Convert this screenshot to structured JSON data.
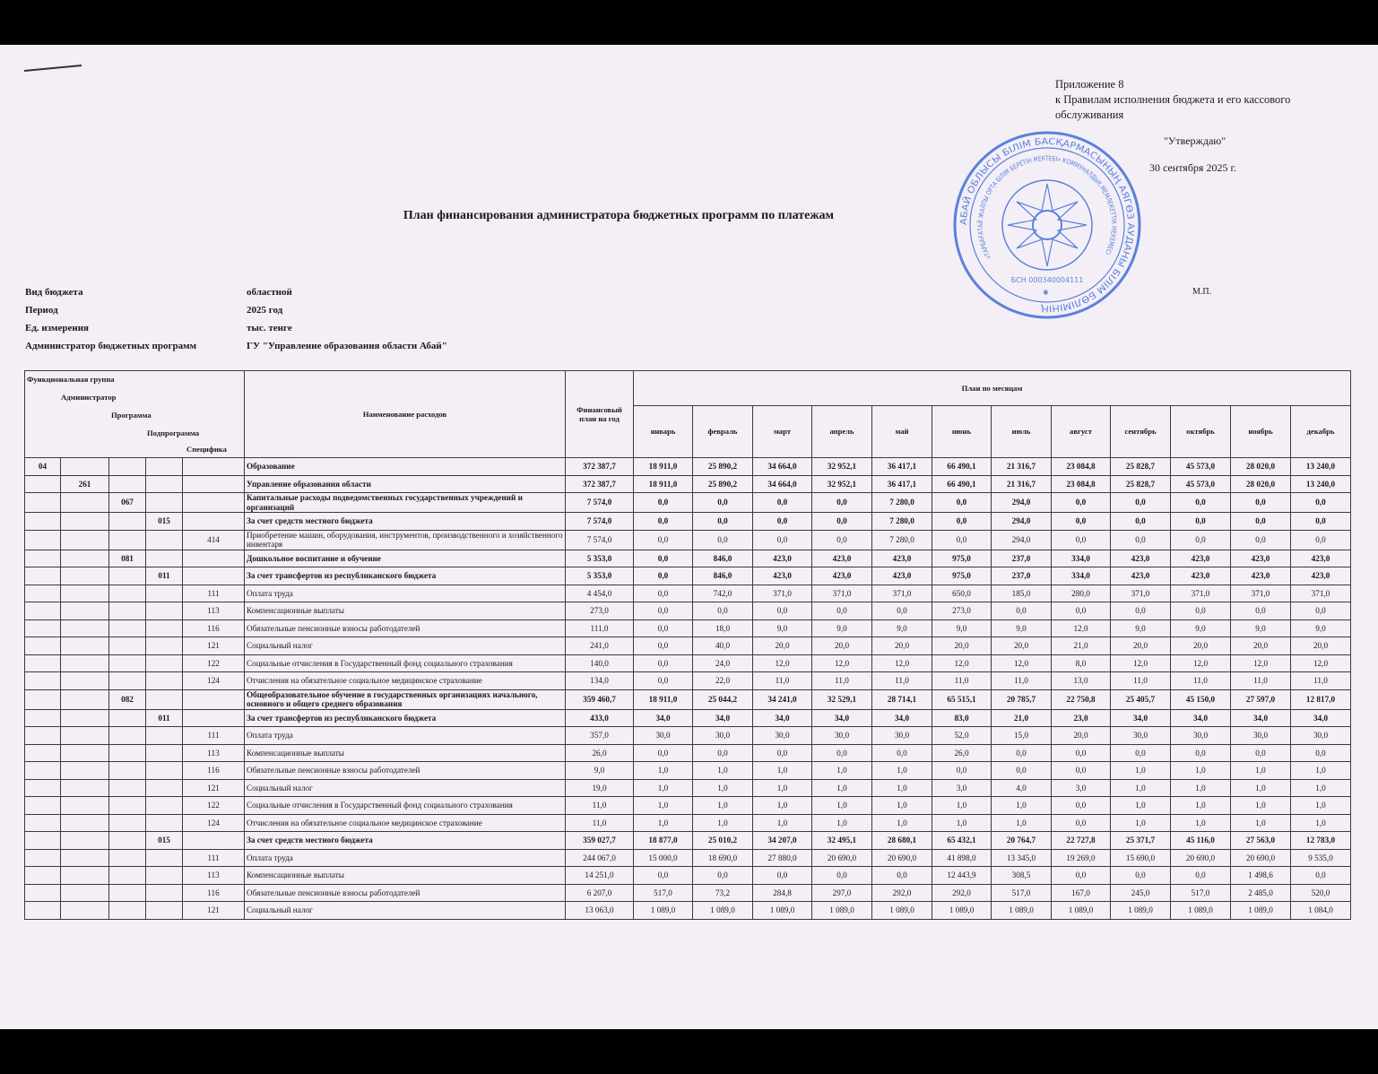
{
  "appendix": {
    "line1": "Приложение 8",
    "line2": "к Правилам исполнения бюджета и его кассового обслуживания",
    "approve": "\"Утверждаю\"",
    "date": "30  сентября 2025 г.",
    "seal_place": "М.П."
  },
  "stamp": {
    "color": "#3f6fd8",
    "outer_text": "АБАЙ ОБЛЫСЫ БІЛІМ БАСҚАРМАСЫНЫҢ АЯГӨЗ АУДАНЫ БІЛІМ БӨЛІМІНІҢ",
    "inner_text": "«ТАРБАҒАТАЙ ЖАЛПЫ ОРТА БІЛІМ БЕРЕТІН МЕКТЕБІ» КОММУНАЛДЫҚ МЕМЛЕКЕТТІК МЕКЕМЕСІ",
    "bin": "БСН 000340004111"
  },
  "title": "План финансирования администратора бюджетных программ по платежам",
  "meta": [
    {
      "label": "Вид бюджета",
      "value": "областной"
    },
    {
      "label": "Период",
      "value": "2025 год"
    },
    {
      "label": "Ед. измерения",
      "value": "тыс. тенге"
    },
    {
      "label": "Администратор бюджетных программ",
      "value": "ГУ \"Управление образования области Абай\""
    }
  ],
  "table": {
    "code_headers": [
      "Функциональная группа",
      "Администратор",
      "Программа",
      "Подпрограмма",
      "Специфика"
    ],
    "name_header": "Наименование расходов",
    "annual_header": "Финансовый план на год",
    "months_header": "План по месяцам",
    "months": [
      "январь",
      "февраль",
      "март",
      "апрель",
      "май",
      "июнь",
      "июль",
      "август",
      "сентябрь",
      "октябрь",
      "ноябрь",
      "декабрь"
    ],
    "rows": [
      {
        "codes": [
          "04",
          "",
          "",
          "",
          ""
        ],
        "name": "Образование",
        "annual": "372 387,7",
        "m": [
          "18 911,0",
          "25 890,2",
          "34 664,0",
          "32 952,1",
          "36 417,1",
          "66 490,1",
          "21 316,7",
          "23 084,8",
          "25 828,7",
          "45 573,0",
          "28 020,0",
          "13 240,0"
        ]
      },
      {
        "codes": [
          "",
          "261",
          "",
          "",
          ""
        ],
        "name": "Управление образования области",
        "annual": "372 387,7",
        "m": [
          "18 911,0",
          "25 890,2",
          "34 664,0",
          "32 952,1",
          "36 417,1",
          "66 490,1",
          "21 316,7",
          "23 084,8",
          "25 828,7",
          "45 573,0",
          "28 020,0",
          "13 240,0"
        ]
      },
      {
        "codes": [
          "",
          "",
          "067",
          "",
          ""
        ],
        "name": "Капитальные расходы подведомственных государственных учреждений и организаций",
        "annual": "7 574,0",
        "m": [
          "0,0",
          "0,0",
          "0,0",
          "0,0",
          "7 280,0",
          "0,0",
          "294,0",
          "0,0",
          "0,0",
          "0,0",
          "0,0",
          "0,0"
        ]
      },
      {
        "codes": [
          "",
          "",
          "",
          "015",
          ""
        ],
        "name": "За счет средств местного бюджета",
        "annual": "7 574,0",
        "m": [
          "0,0",
          "0,0",
          "0,0",
          "0,0",
          "7 280,0",
          "0,0",
          "294,0",
          "0,0",
          "0,0",
          "0,0",
          "0,0",
          "0,0"
        ]
      },
      {
        "codes": [
          "",
          "",
          "",
          "",
          "414"
        ],
        "name": "Приобретение машин, оборудования, инструментов, производственного и хозяйственного инвентаря",
        "annual": "7 574,0",
        "m": [
          "0,0",
          "0,0",
          "0,0",
          "0,0",
          "7 280,0",
          "0,0",
          "294,0",
          "0,0",
          "0,0",
          "0,0",
          "0,0",
          "0,0"
        ]
      },
      {
        "codes": [
          "",
          "",
          "081",
          "",
          ""
        ],
        "name": "Дошкольное воспитание и обучение",
        "annual": "5 353,0",
        "m": [
          "0,0",
          "846,0",
          "423,0",
          "423,0",
          "423,0",
          "975,0",
          "237,0",
          "334,0",
          "423,0",
          "423,0",
          "423,0",
          "423,0"
        ]
      },
      {
        "codes": [
          "",
          "",
          "",
          "011",
          ""
        ],
        "name": "За счет трансфертов из республиканского бюджета",
        "annual": "5 353,0",
        "m": [
          "0,0",
          "846,0",
          "423,0",
          "423,0",
          "423,0",
          "975,0",
          "237,0",
          "334,0",
          "423,0",
          "423,0",
          "423,0",
          "423,0"
        ]
      },
      {
        "codes": [
          "",
          "",
          "",
          "",
          "111"
        ],
        "name": "Оплата труда",
        "annual": "4 454,0",
        "m": [
          "0,0",
          "742,0",
          "371,0",
          "371,0",
          "371,0",
          "650,0",
          "185,0",
          "280,0",
          "371,0",
          "371,0",
          "371,0",
          "371,0"
        ]
      },
      {
        "codes": [
          "",
          "",
          "",
          "",
          "113"
        ],
        "name": "Компенсационные выплаты",
        "annual": "273,0",
        "m": [
          "0,0",
          "0,0",
          "0,0",
          "0,0",
          "0,0",
          "273,0",
          "0,0",
          "0,0",
          "0,0",
          "0,0",
          "0,0",
          "0,0"
        ]
      },
      {
        "codes": [
          "",
          "",
          "",
          "",
          "116"
        ],
        "name": "Обязательные пенсионные взносы работодателей",
        "annual": "111,0",
        "m": [
          "0,0",
          "18,0",
          "9,0",
          "9,0",
          "9,0",
          "9,0",
          "9,0",
          "12,0",
          "9,0",
          "9,0",
          "9,0",
          "9,0"
        ]
      },
      {
        "codes": [
          "",
          "",
          "",
          "",
          "121"
        ],
        "name": "Социальный налог",
        "annual": "241,0",
        "m": [
          "0,0",
          "40,0",
          "20,0",
          "20,0",
          "20,0",
          "20,0",
          "20,0",
          "21,0",
          "20,0",
          "20,0",
          "20,0",
          "20,0"
        ]
      },
      {
        "codes": [
          "",
          "",
          "",
          "",
          "122"
        ],
        "name": "Социальные отчисления в Государственный фонд социального страхования",
        "annual": "140,0",
        "m": [
          "0,0",
          "24,0",
          "12,0",
          "12,0",
          "12,0",
          "12,0",
          "12,0",
          "8,0",
          "12,0",
          "12,0",
          "12,0",
          "12,0"
        ]
      },
      {
        "codes": [
          "",
          "",
          "",
          "",
          "124"
        ],
        "name": "Отчисления на обязательное социальное медицинское страхование",
        "annual": "134,0",
        "m": [
          "0,0",
          "22,0",
          "11,0",
          "11,0",
          "11,0",
          "11,0",
          "11,0",
          "13,0",
          "11,0",
          "11,0",
          "11,0",
          "11,0"
        ]
      },
      {
        "codes": [
          "",
          "",
          "082",
          "",
          ""
        ],
        "name": "Общеобразовательное обучение в государственных организациях начального, основного и общего среднего образования",
        "annual": "359 460,7",
        "m": [
          "18 911,0",
          "25 044,2",
          "34 241,0",
          "32 529,1",
          "28 714,1",
          "65 515,1",
          "20 785,7",
          "22 750,8",
          "25 405,7",
          "45 150,0",
          "27 597,0",
          "12 817,0"
        ]
      },
      {
        "codes": [
          "",
          "",
          "",
          "011",
          ""
        ],
        "name": "За счет трансфертов из республиканского бюджета",
        "annual": "433,0",
        "m": [
          "34,0",
          "34,0",
          "34,0",
          "34,0",
          "34,0",
          "83,0",
          "21,0",
          "23,0",
          "34,0",
          "34,0",
          "34,0",
          "34,0"
        ]
      },
      {
        "codes": [
          "",
          "",
          "",
          "",
          "111"
        ],
        "name": "Оплата труда",
        "annual": "357,0",
        "m": [
          "30,0",
          "30,0",
          "30,0",
          "30,0",
          "30,0",
          "52,0",
          "15,0",
          "20,0",
          "30,0",
          "30,0",
          "30,0",
          "30,0"
        ]
      },
      {
        "codes": [
          "",
          "",
          "",
          "",
          "113"
        ],
        "name": "Компенсационные выплаты",
        "annual": "26,0",
        "m": [
          "0,0",
          "0,0",
          "0,0",
          "0,0",
          "0,0",
          "26,0",
          "0,0",
          "0,0",
          "0,0",
          "0,0",
          "0,0",
          "0,0"
        ]
      },
      {
        "codes": [
          "",
          "",
          "",
          "",
          "116"
        ],
        "name": "Обязательные пенсионные взносы работодателей",
        "annual": "9,0",
        "m": [
          "1,0",
          "1,0",
          "1,0",
          "1,0",
          "1,0",
          "0,0",
          "0,0",
          "0,0",
          "1,0",
          "1,0",
          "1,0",
          "1,0"
        ]
      },
      {
        "codes": [
          "",
          "",
          "",
          "",
          "121"
        ],
        "name": "Социальный налог",
        "annual": "19,0",
        "m": [
          "1,0",
          "1,0",
          "1,0",
          "1,0",
          "1,0",
          "3,0",
          "4,0",
          "3,0",
          "1,0",
          "1,0",
          "1,0",
          "1,0"
        ]
      },
      {
        "codes": [
          "",
          "",
          "",
          "",
          "122"
        ],
        "name": "Социальные отчисления в Государственный фонд социального страхования",
        "annual": "11,0",
        "m": [
          "1,0",
          "1,0",
          "1,0",
          "1,0",
          "1,0",
          "1,0",
          "1,0",
          "0,0",
          "1,0",
          "1,0",
          "1,0",
          "1,0"
        ]
      },
      {
        "codes": [
          "",
          "",
          "",
          "",
          "124"
        ],
        "name": "Отчисления на обязательное социальное медицинское страхование",
        "annual": "11,0",
        "m": [
          "1,0",
          "1,0",
          "1,0",
          "1,0",
          "1,0",
          "1,0",
          "1,0",
          "0,0",
          "1,0",
          "1,0",
          "1,0",
          "1,0"
        ]
      },
      {
        "codes": [
          "",
          "",
          "",
          "015",
          ""
        ],
        "name": "За счет средств местного бюджета",
        "annual": "359 027,7",
        "m": [
          "18 877,0",
          "25 010,2",
          "34 207,0",
          "32 495,1",
          "28 680,1",
          "65 432,1",
          "20 764,7",
          "22 727,8",
          "25 371,7",
          "45 116,0",
          "27 563,0",
          "12 783,0"
        ]
      },
      {
        "codes": [
          "",
          "",
          "",
          "",
          "111"
        ],
        "name": "Оплата труда",
        "annual": "244 067,0",
        "m": [
          "15 000,0",
          "18 690,0",
          "27 880,0",
          "20 690,0",
          "20 690,0",
          "41 898,0",
          "13 345,0",
          "19 269,0",
          "15 690,0",
          "20 690,0",
          "20 690,0",
          "9 535,0"
        ]
      },
      {
        "codes": [
          "",
          "",
          "",
          "",
          "113"
        ],
        "name": "Компенсационные выплаты",
        "annual": "14 251,0",
        "m": [
          "0,0",
          "0,0",
          "0,0",
          "0,0",
          "0,0",
          "12 443,9",
          "308,5",
          "0,0",
          "0,0",
          "0,0",
          "1 498,6",
          "0,0"
        ]
      },
      {
        "codes": [
          "",
          "",
          "",
          "",
          "116"
        ],
        "name": "Обязательные пенсионные взносы работодателей",
        "annual": "6 207,0",
        "m": [
          "517,0",
          "73,2",
          "284,8",
          "297,0",
          "292,0",
          "292,0",
          "517,0",
          "167,0",
          "245,0",
          "517,0",
          "2 485,0",
          "520,0"
        ]
      },
      {
        "codes": [
          "",
          "",
          "",
          "",
          "121"
        ],
        "name": "Социальный налог",
        "annual": "13 063,0",
        "m": [
          "1 089,0",
          "1 089,0",
          "1 089,0",
          "1 089,0",
          "1 089,0",
          "1 089,0",
          "1 089,0",
          "1 089,0",
          "1 089,0",
          "1 089,0",
          "1 089,0",
          "1 084,0"
        ]
      }
    ]
  }
}
